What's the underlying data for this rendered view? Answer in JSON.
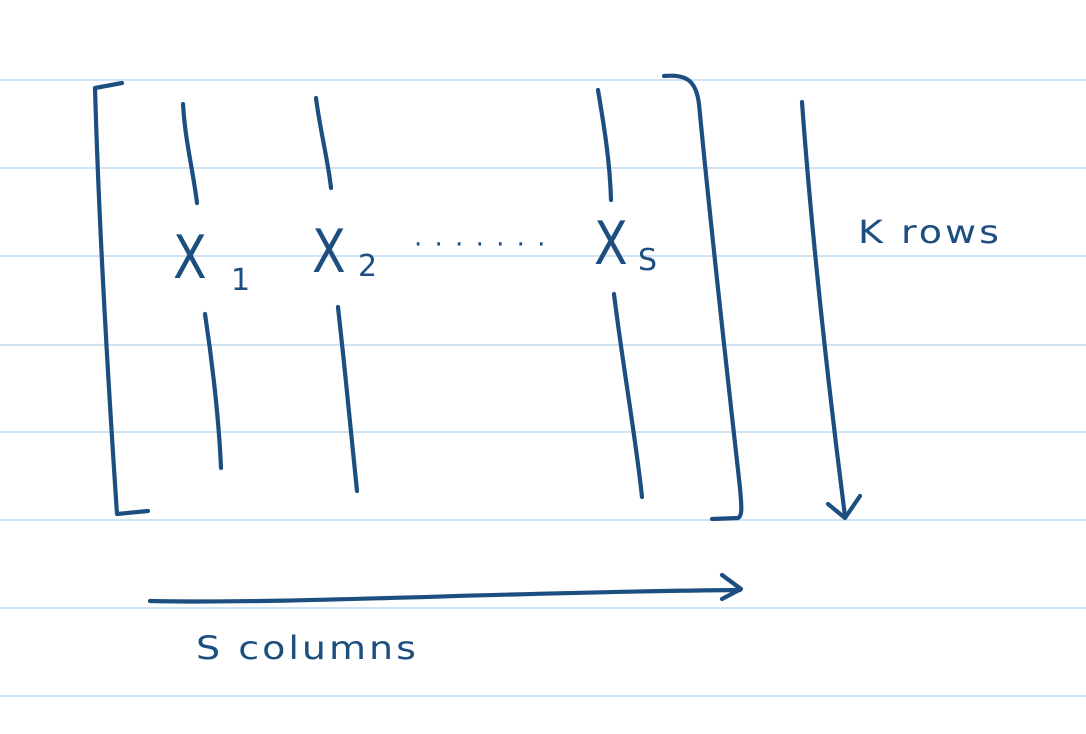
{
  "colors": {
    "ink": "#1c4e80",
    "ruled_line": "#cfe3f2",
    "paper": "#ffffff"
  },
  "matrix": {
    "columns": [
      {
        "var": "X",
        "sub": "1"
      },
      {
        "var": "X",
        "sub": "2"
      },
      {
        "var": "X",
        "sub": "S"
      }
    ],
    "ellipsis": "· · · · · · ·"
  },
  "labels": {
    "rows": "K rows",
    "columns": "S columns"
  }
}
